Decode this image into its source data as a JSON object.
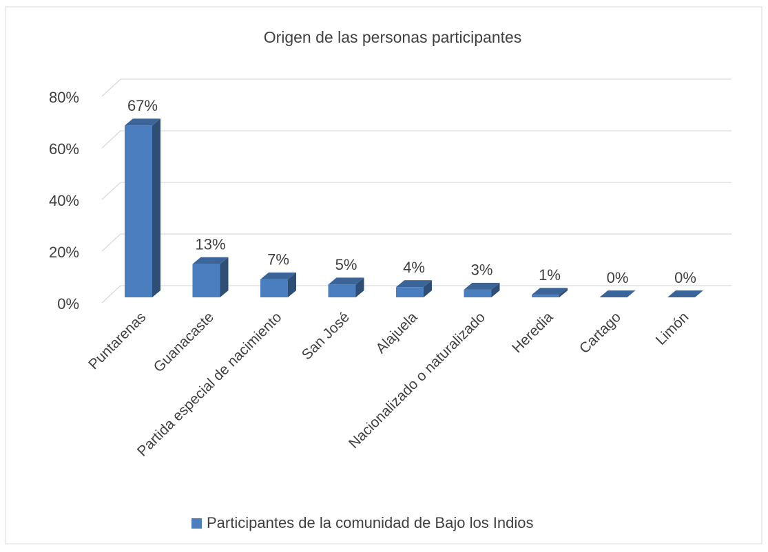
{
  "chart_data": {
    "type": "bar3d",
    "title": "Origen de las personas participantes",
    "categories": [
      "Puntarenas",
      "Guanacaste",
      "Partida especial de nacimiento",
      "San José",
      "Alajuela",
      "Nacionalizado o naturalizado",
      "Heredia",
      "Cartago",
      "Limón"
    ],
    "series": [
      {
        "name": "Participantes de la comunidad de Bajo los Indios",
        "color": "#4a7ebf",
        "values": [
          67,
          13,
          7,
          5,
          4,
          3,
          1,
          0,
          0
        ],
        "value_labels": [
          "67%",
          "13%",
          "7%",
          "5%",
          "4%",
          "3%",
          "1%",
          "0%",
          "0%"
        ]
      }
    ],
    "ylim": [
      0,
      80
    ],
    "yticks": [
      {
        "value": 0,
        "label": "0%"
      },
      {
        "value": 20,
        "label": "20%"
      },
      {
        "value": 40,
        "label": "40%"
      },
      {
        "value": 60,
        "label": "60%"
      },
      {
        "value": 80,
        "label": "80%"
      }
    ],
    "grid": true,
    "legend": "bottom"
  }
}
